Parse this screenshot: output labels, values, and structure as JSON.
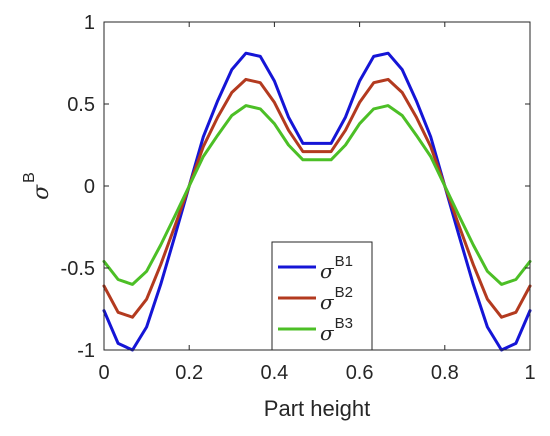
{
  "chart_data": {
    "type": "line",
    "xlabel": "Part height",
    "ylabel": "σ",
    "ylabel_sup": "B",
    "xlim": [
      0,
      1
    ],
    "ylim": [
      -1,
      1
    ],
    "xticks": [
      "0",
      "0.2",
      "0.4",
      "0.6",
      "0.8",
      "1"
    ],
    "yticks": [
      "-1",
      "-0.5",
      "0",
      "0.5",
      "1"
    ],
    "grid": false,
    "legend_position": "bottom-center",
    "x": [
      0,
      0.033,
      0.067,
      0.1,
      0.133,
      0.167,
      0.2,
      0.233,
      0.267,
      0.3,
      0.333,
      0.367,
      0.4,
      0.433,
      0.467,
      0.5,
      0.533,
      0.567,
      0.6,
      0.633,
      0.667,
      0.7,
      0.733,
      0.767,
      0.8,
      0.833,
      0.867,
      0.9,
      0.933,
      0.967,
      1
    ],
    "series": [
      {
        "name": "σ",
        "sup": "B1",
        "color": "#1515d6",
        "values": [
          -0.76,
          -0.96,
          -1.0,
          -0.86,
          -0.6,
          -0.3,
          0.0,
          0.3,
          0.52,
          0.71,
          0.81,
          0.79,
          0.64,
          0.42,
          0.26,
          0.26,
          0.26,
          0.42,
          0.64,
          0.79,
          0.81,
          0.71,
          0.52,
          0.3,
          0.0,
          -0.3,
          -0.6,
          -0.86,
          -1.0,
          -0.96,
          -0.76
        ]
      },
      {
        "name": "σ",
        "sup": "B2",
        "color": "#b33a1f",
        "values": [
          -0.61,
          -0.77,
          -0.8,
          -0.69,
          -0.48,
          -0.24,
          0.0,
          0.24,
          0.42,
          0.57,
          0.65,
          0.63,
          0.51,
          0.34,
          0.21,
          0.21,
          0.21,
          0.34,
          0.51,
          0.63,
          0.65,
          0.57,
          0.42,
          0.24,
          0.0,
          -0.24,
          -0.48,
          -0.69,
          -0.8,
          -0.77,
          -0.61
        ]
      },
      {
        "name": "σ",
        "sup": "B3",
        "color": "#4cbf26",
        "values": [
          -0.46,
          -0.57,
          -0.6,
          -0.52,
          -0.36,
          -0.18,
          0.0,
          0.18,
          0.31,
          0.43,
          0.49,
          0.47,
          0.38,
          0.25,
          0.16,
          0.16,
          0.16,
          0.25,
          0.38,
          0.47,
          0.49,
          0.43,
          0.31,
          0.18,
          0.0,
          -0.18,
          -0.36,
          -0.52,
          -0.6,
          -0.57,
          -0.46
        ]
      }
    ]
  }
}
